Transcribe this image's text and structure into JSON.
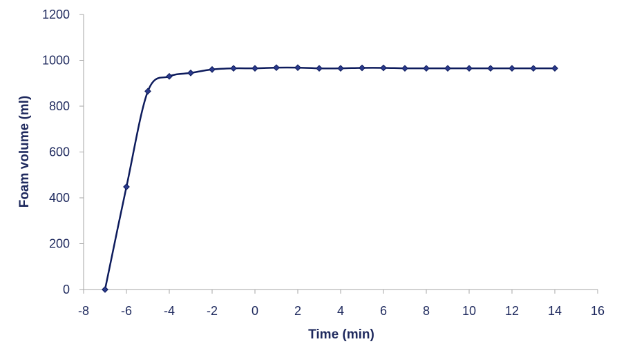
{
  "chart_data": {
    "type": "line",
    "title": "",
    "xlabel": "Time (min)",
    "ylabel": "Foam volume (ml)",
    "xlim": [
      -8,
      16
    ],
    "ylim": [
      0,
      1200
    ],
    "xticks": [
      -8,
      -6,
      -4,
      -2,
      0,
      2,
      4,
      6,
      8,
      10,
      12,
      14,
      16
    ],
    "yticks": [
      0,
      200,
      400,
      600,
      800,
      1000,
      1200
    ],
    "x_tick_labels": [
      "-8",
      "-6",
      "-4",
      "-2",
      "0",
      "2",
      "4",
      "6",
      "8",
      "10",
      "12",
      "14",
      "16"
    ],
    "y_tick_labels": [
      "0",
      "200",
      "400",
      "600",
      "800",
      "1000",
      "1200"
    ],
    "grid": false,
    "legend": "none",
    "series": [
      {
        "color": "#0d1b5c",
        "marker": "diamond",
        "smooth": true,
        "x": [
          -7,
          -6,
          -5,
          -4,
          -3,
          -2,
          -1,
          0,
          1,
          2,
          3,
          4,
          5,
          6,
          7,
          8,
          9,
          10,
          11,
          12,
          13,
          14
        ],
        "y": [
          0,
          448,
          865,
          930,
          945,
          960,
          965,
          965,
          968,
          968,
          965,
          965,
          967,
          967,
          965,
          965,
          965,
          965,
          965,
          965,
          965,
          965
        ]
      }
    ]
  }
}
